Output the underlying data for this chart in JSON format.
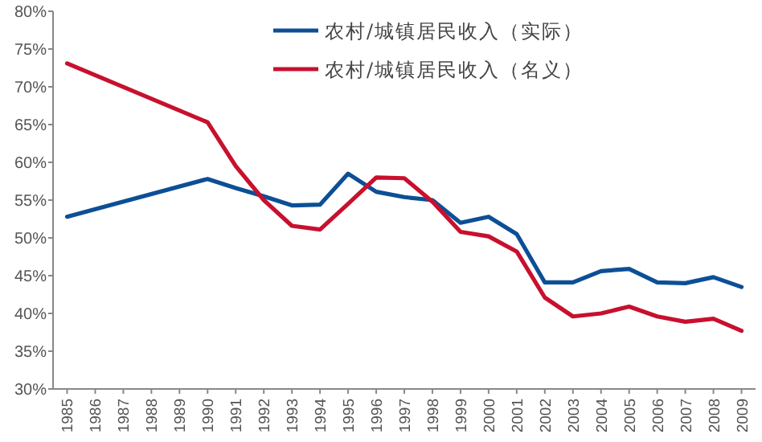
{
  "chart_data": {
    "type": "line",
    "xlim": [
      1984.5,
      2009.5
    ],
    "xticks": [
      1985,
      1986,
      1987,
      1988,
      1989,
      1990,
      1991,
      1992,
      1993,
      1994,
      1995,
      1996,
      1997,
      1998,
      1999,
      2000,
      2001,
      2002,
      2003,
      2004,
      2005,
      2006,
      2007,
      2008,
      2009
    ],
    "series": [
      {
        "name": "农村/城镇居民收入（实际）",
        "color": "#0c4f96",
        "x": [
          1985,
          1990,
          1991,
          1992,
          1993,
          1994,
          1995,
          1996,
          1997,
          1998,
          1999,
          2000,
          2001,
          2002,
          2003,
          2004,
          2005,
          2006,
          2007,
          2008,
          2009
        ],
        "values": [
          52.8,
          57.8,
          56.6,
          55.5,
          54.3,
          54.4,
          58.5,
          56.1,
          55.4,
          55.0,
          52.0,
          52.8,
          50.5,
          44.1,
          44.1,
          45.6,
          45.9,
          44.1,
          44.0,
          44.8,
          43.5
        ]
      },
      {
        "name": "农村/城镇居民收入（名义）",
        "color": "#c8102e",
        "x": [
          1985,
          1990,
          1991,
          1992,
          1993,
          1994,
          1995,
          1996,
          1997,
          1998,
          1999,
          2000,
          2001,
          2002,
          2003,
          2004,
          2005,
          2006,
          2007,
          2008,
          2009
        ],
        "values": [
          73.1,
          65.3,
          59.5,
          55.0,
          51.6,
          51.1,
          54.5,
          58.0,
          57.9,
          54.8,
          50.8,
          50.2,
          48.2,
          42.1,
          39.6,
          40.0,
          40.9,
          39.6,
          38.9,
          39.3,
          37.7
        ]
      }
    ],
    "ylim": [
      30,
      80
    ],
    "yticks": [
      {
        "value": 30,
        "label": "30%"
      },
      {
        "value": 35,
        "label": "35%"
      },
      {
        "value": 40,
        "label": "40%"
      },
      {
        "value": 45,
        "label": "45%"
      },
      {
        "value": 50,
        "label": "50%"
      },
      {
        "value": 55,
        "label": "55%"
      },
      {
        "value": 60,
        "label": "60%"
      },
      {
        "value": 65,
        "label": "65%"
      },
      {
        "value": 70,
        "label": "70%"
      },
      {
        "value": 75,
        "label": "75%"
      },
      {
        "value": 80,
        "label": "80%"
      }
    ],
    "grid": false,
    "legend": "top right",
    "marker": "none",
    "line_style": "solid"
  }
}
